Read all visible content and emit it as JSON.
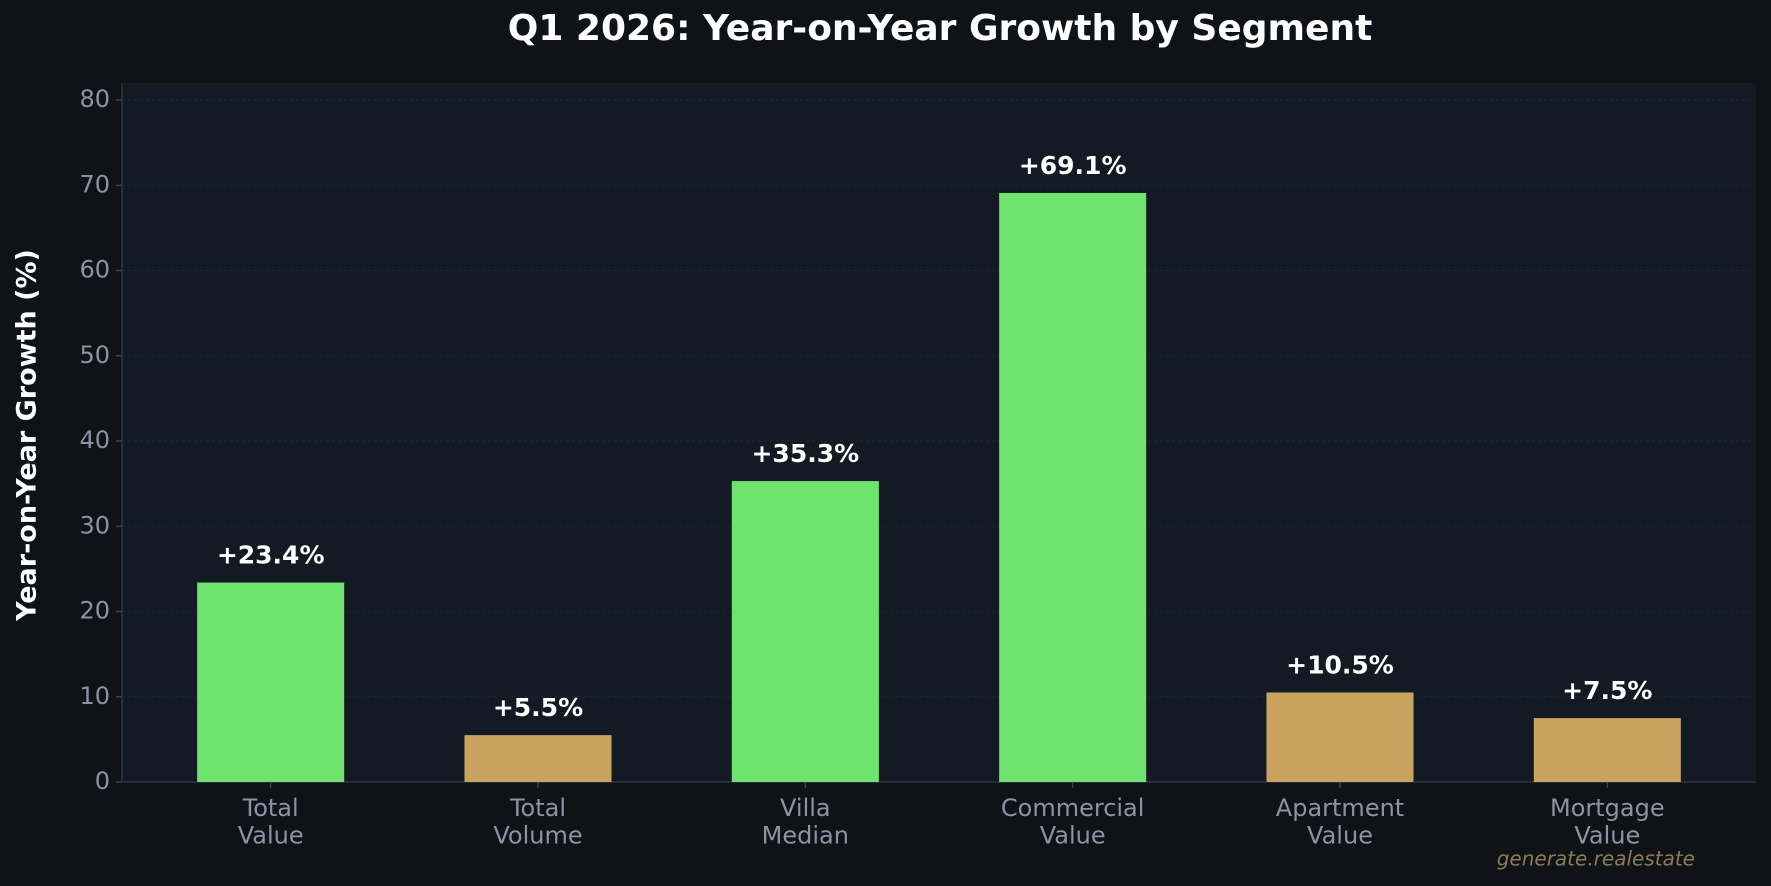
{
  "chart_data": {
    "type": "bar",
    "title": "Q1 2026: Year-on-Year Growth by Segment",
    "y_label": "Year-on-Year Growth (%)",
    "categories": [
      "Total\nValue",
      "Total\nVolume",
      "Villa\nMedian",
      "Commercial\nValue",
      "Apartment\nValue",
      "Mortgage\nValue"
    ],
    "values": [
      23.4,
      5.5,
      35.3,
      69.1,
      10.5,
      7.5
    ],
    "value_labels": [
      "+23.4%",
      "+5.5%",
      "+35.3%",
      "+69.1%",
      "+10.5%",
      "+7.5%"
    ],
    "colors": [
      "#6ee46e",
      "#c9a25e",
      "#6ee46e",
      "#6ee46e",
      "#c9a25e",
      "#c9a25e"
    ],
    "ylim": [
      0,
      82
    ],
    "yticks": [
      0,
      10,
      20,
      30,
      40,
      50,
      60,
      70,
      80
    ],
    "grid": true,
    "watermark": "generate.realestate"
  }
}
